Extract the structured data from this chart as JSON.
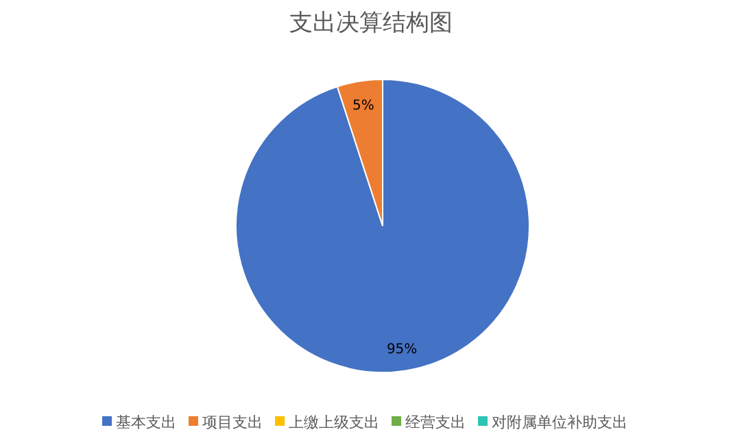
{
  "chart_data": {
    "type": "pie",
    "title": "支出决算结构图",
    "categories": [
      "基本支出",
      "项目支出",
      "上缴上级支出",
      "经营支出",
      "对附属单位补助支出"
    ],
    "values": [
      95,
      5,
      0,
      0,
      0
    ],
    "value_labels": [
      "95%",
      "5%",
      null,
      null,
      null
    ],
    "colors": [
      "#4472c4",
      "#ed7d31",
      "#ffc000",
      "#70ad47",
      "#2ec4b6"
    ],
    "legend": "bottom"
  }
}
